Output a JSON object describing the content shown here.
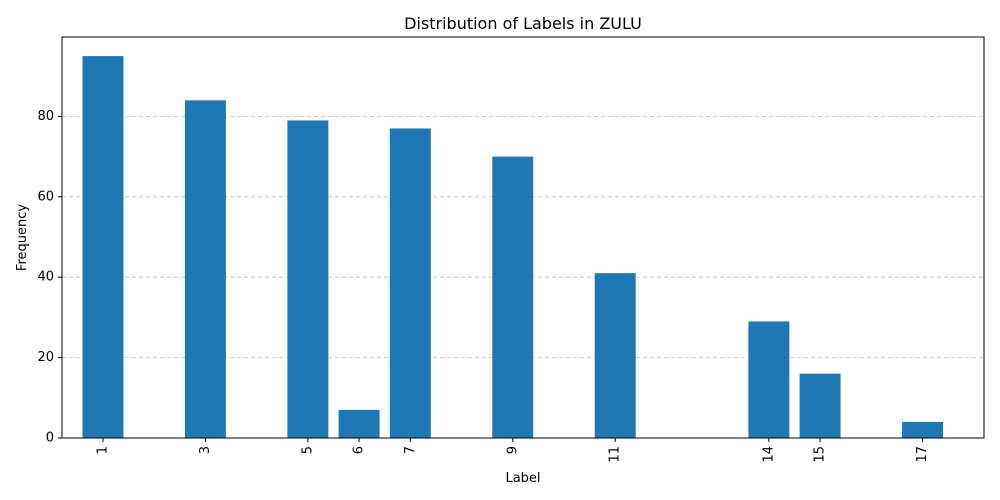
{
  "chart_data": {
    "type": "bar",
    "title": "Distribution of Labels in ZULU",
    "xlabel": "Label",
    "ylabel": "Frequency",
    "x": [
      1,
      3,
      5,
      6,
      7,
      9,
      11,
      14,
      15,
      17
    ],
    "values": [
      95,
      84,
      79,
      7,
      77,
      70,
      41,
      29,
      16,
      4
    ],
    "xlim": [
      0.2,
      18.2
    ],
    "ylim": [
      0,
      99.75
    ],
    "yticks": [
      0,
      20,
      40,
      60,
      80
    ],
    "x_tick_labels": [
      "1",
      "3",
      "5",
      "6",
      "7",
      "9",
      "11",
      "14",
      "15",
      "17"
    ],
    "y_tick_labels": [
      "0",
      "20",
      "40",
      "60",
      "80"
    ],
    "bar_color": "#1f77b4",
    "grid": "y-dashed",
    "legend": "none"
  }
}
